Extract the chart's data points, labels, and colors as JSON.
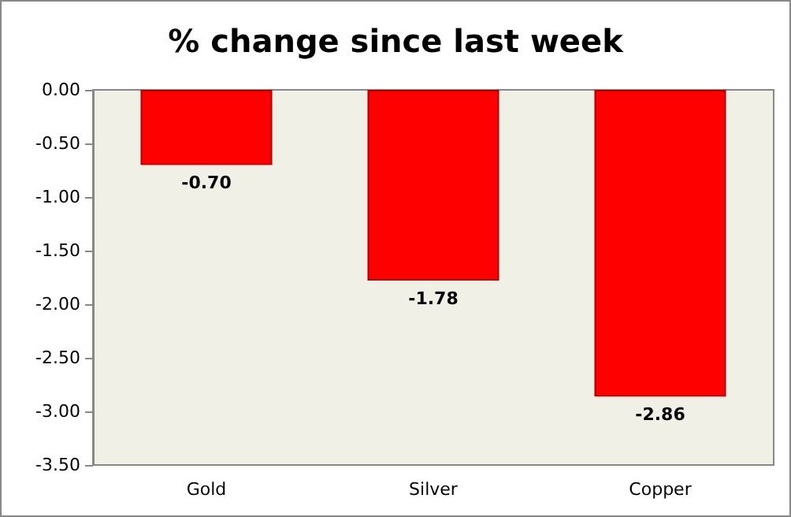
{
  "chart_data": {
    "type": "bar",
    "title": "% change since last week",
    "categories": [
      "Gold",
      "Silver",
      "Copper"
    ],
    "values": [
      -0.7,
      -1.78,
      -2.86
    ],
    "value_labels": [
      "-0.70",
      "-1.78",
      "-2.86"
    ],
    "color": "#ff0000",
    "ylim": [
      -3.5,
      0
    ],
    "yticks": [
      {
        "value": 0,
        "label": "0.00"
      },
      {
        "value": -0.5,
        "label": "-0.50"
      },
      {
        "value": -1,
        "label": "-1.00"
      },
      {
        "value": -1.5,
        "label": "-1.50"
      },
      {
        "value": -2,
        "label": "-2.00"
      },
      {
        "value": -2.5,
        "label": "-2.50"
      },
      {
        "value": -3,
        "label": "-3.00"
      },
      {
        "value": -3.5,
        "label": "-3.50"
      }
    ],
    "grid": false
  }
}
